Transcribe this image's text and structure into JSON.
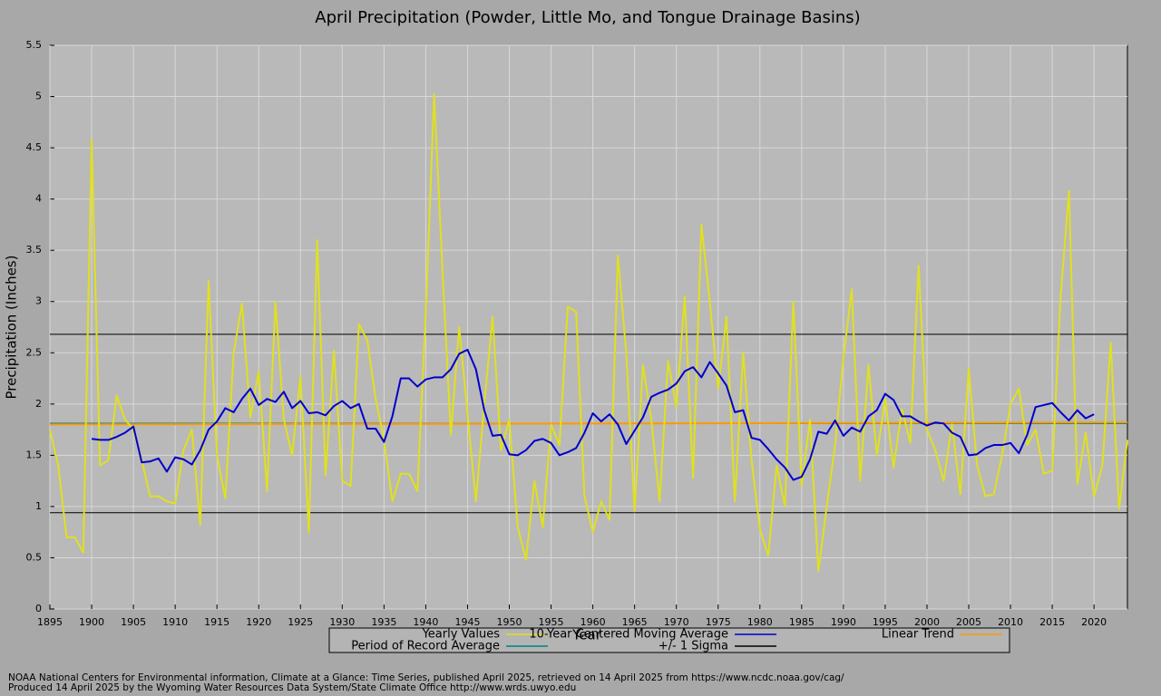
{
  "chart_data": {
    "type": "line",
    "title": "April Precipitation (Powder, Little Mo, and Tongue Drainage Basins)",
    "x_label": "Year",
    "y_label": "Precipitation (Inches)",
    "x": [
      1895,
      1896,
      1897,
      1898,
      1899,
      1900,
      1901,
      1902,
      1903,
      1904,
      1905,
      1906,
      1907,
      1908,
      1909,
      1910,
      1911,
      1912,
      1913,
      1914,
      1915,
      1916,
      1917,
      1918,
      1919,
      1920,
      1921,
      1922,
      1923,
      1924,
      1925,
      1926,
      1927,
      1928,
      1929,
      1930,
      1931,
      1932,
      1933,
      1934,
      1935,
      1936,
      1937,
      1938,
      1939,
      1940,
      1941,
      1942,
      1943,
      1944,
      1945,
      1946,
      1947,
      1948,
      1949,
      1950,
      1951,
      1952,
      1953,
      1954,
      1955,
      1956,
      1957,
      1958,
      1959,
      1960,
      1961,
      1962,
      1963,
      1964,
      1965,
      1966,
      1967,
      1968,
      1969,
      1970,
      1971,
      1972,
      1973,
      1974,
      1975,
      1976,
      1977,
      1978,
      1979,
      1980,
      1981,
      1982,
      1983,
      1984,
      1985,
      1986,
      1987,
      1988,
      1989,
      1990,
      1991,
      1992,
      1993,
      1994,
      1995,
      1996,
      1997,
      1998,
      1999,
      2000,
      2001,
      2002,
      2003,
      2004,
      2005,
      2006,
      2007,
      2008,
      2009,
      2010,
      2011,
      2012,
      2013,
      2014,
      2015,
      2016,
      2017,
      2018,
      2019,
      2020,
      2021,
      2022,
      2023,
      2024
    ],
    "series": [
      {
        "name": "Yearly Values",
        "color": "#e0e020",
        "values": [
          1.75,
          1.4,
          0.7,
          0.7,
          0.55,
          4.58,
          1.4,
          1.45,
          2.08,
          1.85,
          1.75,
          1.45,
          1.1,
          1.1,
          1.05,
          1.03,
          1.55,
          1.75,
          0.82,
          3.2,
          1.5,
          1.08,
          2.5,
          2.98,
          1.87,
          2.32,
          1.15,
          3.0,
          1.85,
          1.5,
          2.27,
          0.75,
          3.6,
          1.3,
          2.52,
          1.25,
          1.2,
          2.78,
          2.62,
          2.05,
          1.65,
          1.05,
          1.32,
          1.32,
          1.15,
          2.9,
          5.02,
          3.3,
          1.7,
          2.75,
          1.9,
          1.05,
          2.0,
          2.85,
          1.55,
          1.85,
          0.8,
          0.48,
          1.25,
          0.8,
          1.8,
          1.6,
          2.95,
          2.9,
          1.1,
          0.75,
          1.05,
          0.87,
          3.45,
          2.5,
          0.95,
          2.38,
          1.85,
          1.05,
          2.42,
          1.97,
          3.05,
          1.28,
          3.75,
          3.0,
          2.15,
          2.85,
          1.05,
          2.5,
          1.45,
          0.78,
          0.52,
          1.4,
          1.0,
          3.0,
          1.2,
          1.85,
          0.37,
          1.0,
          1.6,
          2.45,
          3.12,
          1.25,
          2.38,
          1.5,
          2.05,
          1.38,
          1.95,
          1.62,
          3.35,
          1.75,
          1.55,
          1.25,
          1.8,
          1.12,
          2.35,
          1.4,
          1.1,
          1.12,
          1.5,
          2.0,
          2.15,
          1.6,
          1.75,
          1.32,
          1.35,
          3.05,
          4.08,
          1.22,
          1.72,
          1.1,
          1.4,
          2.6,
          0.98,
          1.65
        ]
      },
      {
        "name": "10-Year Centered Moving Average",
        "color": "#0000cc",
        "values": [
          null,
          null,
          null,
          null,
          null,
          1.66,
          1.65,
          1.65,
          1.68,
          1.72,
          1.78,
          1.43,
          1.44,
          1.47,
          1.34,
          1.48,
          1.46,
          1.41,
          1.55,
          1.75,
          1.83,
          1.96,
          1.92,
          2.05,
          2.15,
          1.99,
          2.05,
          2.02,
          2.12,
          1.96,
          2.03,
          1.91,
          1.92,
          1.89,
          1.98,
          2.03,
          1.96,
          2.0,
          1.76,
          1.76,
          1.63,
          1.88,
          2.25,
          2.25,
          2.17,
          2.24,
          2.26,
          2.26,
          2.34,
          2.49,
          2.53,
          2.34,
          1.94,
          1.69,
          1.7,
          1.51,
          1.5,
          1.55,
          1.64,
          1.66,
          1.62,
          1.5,
          1.53,
          1.57,
          1.72,
          1.91,
          1.83,
          1.9,
          1.8,
          1.61,
          1.74,
          1.87,
          2.07,
          2.11,
          2.14,
          2.2,
          2.32,
          2.36,
          2.26,
          2.41,
          2.3,
          2.18,
          1.92,
          1.94,
          1.67,
          1.65,
          1.56,
          1.46,
          1.38,
          1.26,
          1.29,
          1.46,
          1.73,
          1.71,
          1.84,
          1.69,
          1.77,
          1.73,
          1.88,
          1.94,
          2.1,
          2.04,
          1.88,
          1.88,
          1.83,
          1.79,
          1.82,
          1.81,
          1.72,
          1.68,
          1.5,
          1.51,
          1.57,
          1.6,
          1.6,
          1.62,
          1.52,
          1.7,
          1.97,
          1.99,
          2.01,
          1.92,
          1.84,
          1.94,
          1.86,
          1.9,
          null,
          null,
          null,
          null
        ]
      }
    ],
    "linear_trend": {
      "name": "Linear Trend",
      "color": "#ff9900",
      "values": [
        1.8,
        1.82
      ]
    },
    "period_average": {
      "name": "Period of Record Average",
      "color": "#008080",
      "value": 1.81
    },
    "sigma": {
      "name": "+/- 1 Sigma",
      "color": "#000000",
      "values": [
        0.94,
        2.68
      ]
    },
    "xlim": [
      1895,
      2024
    ],
    "ylim": [
      0,
      5.5
    ],
    "xticks": [
      1895,
      1900,
      1905,
      1910,
      1915,
      1920,
      1925,
      1930,
      1935,
      1940,
      1945,
      1950,
      1955,
      1960,
      1965,
      1970,
      1975,
      1980,
      1985,
      1990,
      1995,
      2000,
      2005,
      2010,
      2015,
      2020
    ],
    "yticks": [
      0,
      0.5,
      1,
      1.5,
      2,
      2.5,
      3,
      3.5,
      4,
      4.5,
      5,
      5.5
    ],
    "grid": true,
    "legend": "bottom",
    "footer": [
      "NOAA National Centers for Environmental information, Climate at a Glance: Time Series, published April 2025, retrieved on 14 April 2025 from https://www.ncdc.noaa.gov/cag/",
      "Produced 14 April 2025 by the Wyoming Water Resources Data System/State Climate Office http://www.wrds.uwyo.edu"
    ]
  }
}
